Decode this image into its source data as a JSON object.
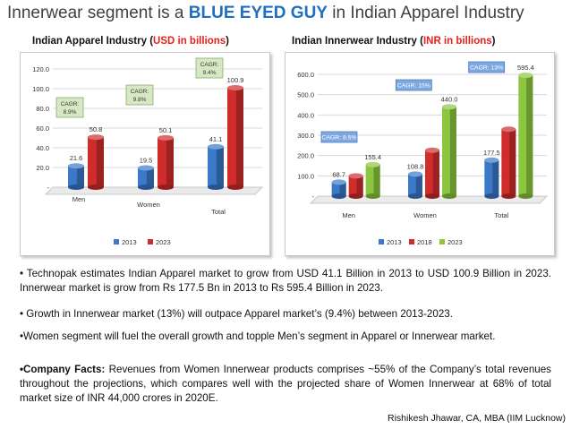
{
  "slide": {
    "title_prefix": "Innerwear segment is a ",
    "title_highlight": "BLUE EYED GUY",
    "title_suffix": " in Indian Apparel Industry",
    "subtitle_left_prefix": "Indian Apparel Industry (",
    "subtitle_left_unit": "USD in billions",
    "subtitle_left_suffix": ")",
    "subtitle_right_prefix": "Indian Innerwear Industry (",
    "subtitle_right_unit": "INR in billions",
    "subtitle_right_suffix": ")",
    "bullet1": "• Technopak estimates Indian Apparel market to grow from USD 41.1 Billion in 2013 to USD 100.9 Billion in 2023. Innerwear market is grow from Rs 177.5 Bn in 2013 to Rs 595.4 Billion in 2023.",
    "bullet2": "• Growth in Innerwear market (13%) will outpace Apparel market’s (9.4%) between 2013-2023.",
    "bullet3": "•Women segment will fuel the overall growth and topple Men’s segment in Apparel or Innerwear market.",
    "bullet4_label": "•Company Facts:",
    "bullet4_text": " Revenues from Women Innerwear products comprises ~55% of the Company’s total revenues throughout the projections, which compares well with the projected share of Women Innerwear at 68% of total market size of INR 44,000 crores in 2020E.",
    "credit": "Rishikesh Jhawar, CA, MBA (IIM Lucknow)"
  },
  "colors": {
    "blue": "#3a78c9",
    "red": "#d02c2c",
    "green": "#8cc63f",
    "title_highlight": "#1f6fc0",
    "unit_red": "#e8201a",
    "callout_fill": "#d7e9c4",
    "callout_fill_right": "#7ea9e0"
  },
  "chart_data": [
    {
      "type": "bar",
      "title": "Indian Apparel Industry (USD in billions)",
      "categories": [
        "Men",
        "Women",
        "Total"
      ],
      "series": [
        {
          "name": "2013",
          "values": [
            21.6,
            19.5,
            41.1
          ]
        },
        {
          "name": "2023",
          "values": [
            50.8,
            50.1,
            100.9
          ]
        }
      ],
      "ylim": [
        0,
        120
      ],
      "yticks": [
        "-",
        "20.0",
        "40.0",
        "60.0",
        "80.0",
        "100.0",
        "120.0"
      ],
      "value_labels": [
        [
          "21.6",
          "19.5",
          "41.1"
        ],
        [
          "50.8",
          "50.1",
          "100.9"
        ]
      ],
      "callouts": [
        [
          "CAGR:",
          "8.9%"
        ],
        [
          "CAGR:",
          "9.8%"
        ],
        [
          "CAGR:",
          "9.4%"
        ]
      ],
      "legend": [
        "2013",
        "2023"
      ],
      "legend_position": "bottom"
    },
    {
      "type": "bar",
      "title": "Indian Innerwear Industry (INR in billions)",
      "categories": [
        "Men",
        "Women",
        "Total"
      ],
      "series": [
        {
          "name": "2013",
          "values": [
            68.7,
            108.8,
            177.5
          ]
        },
        {
          "name": "2018",
          "values": [
            100,
            226,
            330
          ]
        },
        {
          "name": "2023",
          "values": [
            155.4,
            440.0,
            595.4
          ]
        }
      ],
      "ylim": [
        0,
        600
      ],
      "yticks": [
        "-",
        "100.0",
        "200.0",
        "300.0",
        "400.0",
        "500.0",
        "600.0"
      ],
      "value_labels": [
        [
          "68.7",
          "108.8",
          "177.5"
        ],
        [
          "",
          "",
          ""
        ],
        [
          "155.4",
          "440.0",
          "595.4"
        ]
      ],
      "callouts": [
        "CAGR: 8.5%",
        "CAGR: 15%",
        "CAGR: 13%"
      ],
      "legend": [
        "2013",
        "2018",
        "2023"
      ],
      "legend_position": "bottom"
    }
  ]
}
